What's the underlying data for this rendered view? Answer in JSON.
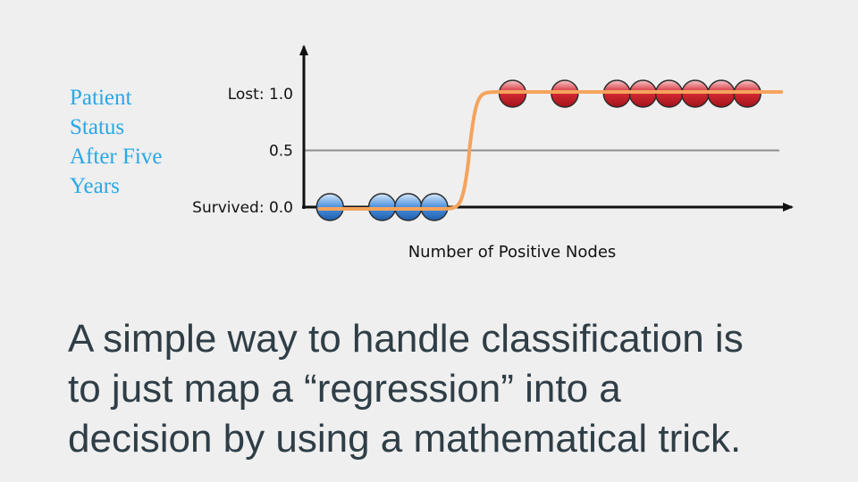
{
  "slide": {
    "y_axis_label_lines": [
      "Patient",
      "Status",
      "After Five",
      "Years"
    ],
    "caption_lines": [
      "A simple way to handle classification is",
      "to just map a “regression” into a",
      "decision by using a mathematical trick."
    ]
  },
  "chart_data": {
    "type": "scatter",
    "xlabel": "Number of Positive Nodes",
    "y_ticks": [
      {
        "value": 1.0,
        "label": "Lost: 1.0"
      },
      {
        "value": 0.5,
        "label": "0.5"
      },
      {
        "value": 0.0,
        "label": "Survived: 0.0"
      }
    ],
    "threshold": 0.5,
    "points": [
      {
        "x": 1,
        "y": 0,
        "class": "survived"
      },
      {
        "x": 3,
        "y": 0,
        "class": "survived"
      },
      {
        "x": 4,
        "y": 0,
        "class": "survived"
      },
      {
        "x": 5,
        "y": 0,
        "class": "survived"
      },
      {
        "x": 8,
        "y": 1,
        "class": "lost"
      },
      {
        "x": 10,
        "y": 1,
        "class": "lost"
      },
      {
        "x": 12,
        "y": 1,
        "class": "lost"
      },
      {
        "x": 13,
        "y": 1,
        "class": "lost"
      },
      {
        "x": 14,
        "y": 1,
        "class": "lost"
      },
      {
        "x": 15,
        "y": 1,
        "class": "lost"
      },
      {
        "x": 16,
        "y": 1,
        "class": "lost"
      },
      {
        "x": 17,
        "y": 1,
        "class": "lost"
      }
    ],
    "curve": "sigmoid",
    "colors": {
      "survived": "#3f86d8",
      "lost": "#d0202a",
      "curve": "#f5a35c",
      "threshold": "#8c8c8c",
      "axis": "#111111"
    }
  }
}
